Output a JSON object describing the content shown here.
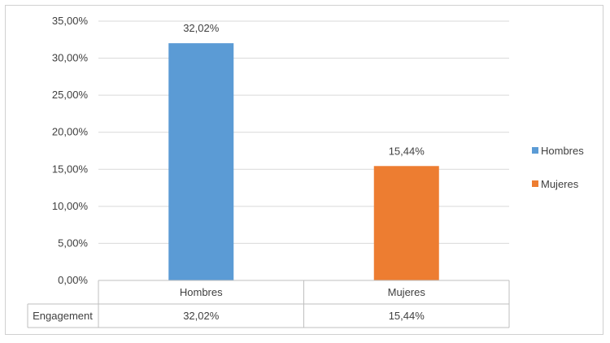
{
  "chart_data": {
    "type": "bar",
    "categories": [
      "Hombres",
      "Mujeres"
    ],
    "series": [
      {
        "name": "Hombres",
        "values": [
          32.02,
          null
        ],
        "color": "#5b9bd5"
      },
      {
        "name": "Mujeres",
        "values": [
          null,
          15.44
        ],
        "color": "#ed7d31"
      }
    ],
    "data_labels": [
      "32,02%",
      "15,44%"
    ],
    "ylim": [
      0,
      35
    ],
    "y_ticks": [
      "0,00%",
      "5,00%",
      "10,00%",
      "15,00%",
      "20,00%",
      "25,00%",
      "30,00%",
      "35,00%"
    ],
    "grid": true,
    "legend_position": "right",
    "table": {
      "row_header": "Engagement",
      "values": [
        "32,02%",
        "15,44%"
      ]
    }
  }
}
